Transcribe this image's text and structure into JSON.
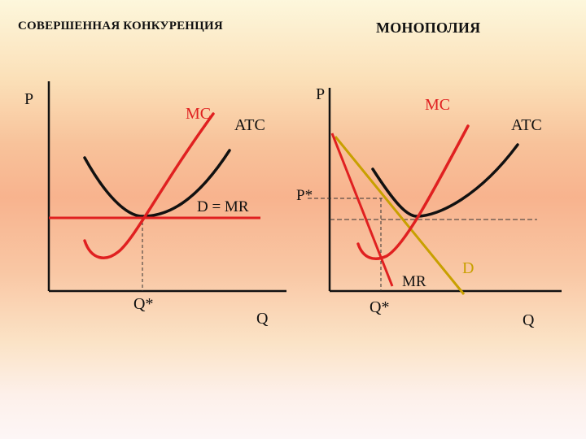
{
  "slide": {
    "title_left": "СОВЕРШЕННАЯ КОНКУРЕНЦИЯ",
    "title_right": "МОНОПОЛИЯ"
  },
  "left_graph": {
    "y_axis_label": "P",
    "x_axis_label": "Q",
    "mc_label": "MC",
    "atc_label": "ATC",
    "demand_label": "D = MR",
    "quantity_label": "Q*"
  },
  "right_graph": {
    "y_axis_label": "P",
    "x_axis_label": "Q",
    "mc_label": "MC",
    "atc_label": "ATC",
    "price_label": "P*",
    "mr_label": "MR",
    "demand_label": "D",
    "quantity_label": "Q*"
  },
  "colors": {
    "mc_curve": "#e02020",
    "atc_curve": "#111111",
    "demand_monopoly": "#c8a000",
    "axis": "#111111",
    "dashed_guides": "#333333"
  }
}
